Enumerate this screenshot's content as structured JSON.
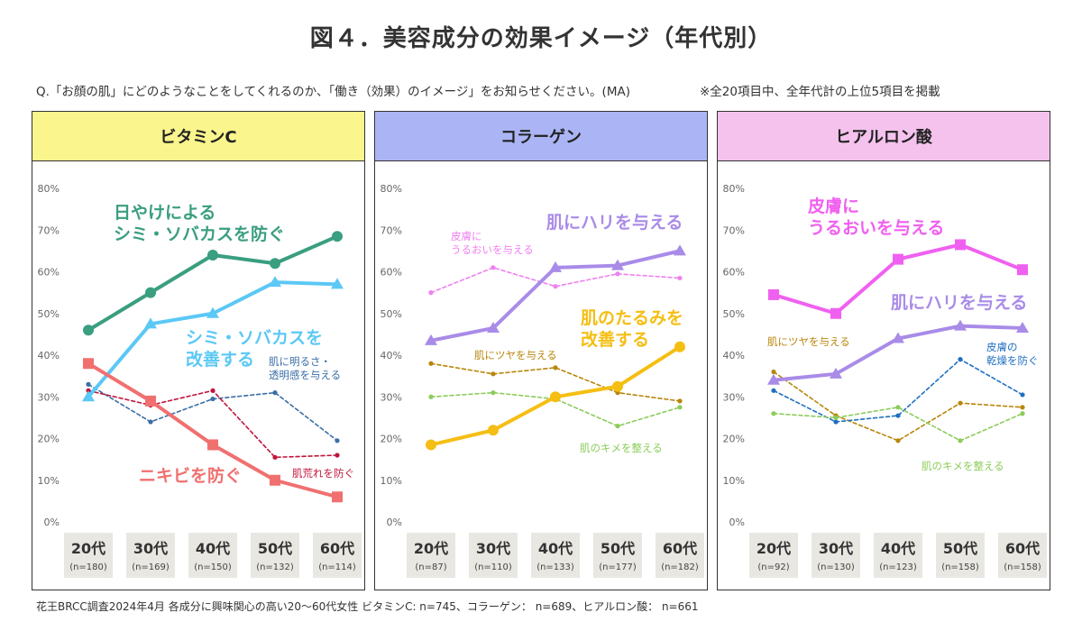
{
  "title": "図４．美容成分の効果イメージ（年代別）",
  "question": "Q.「お顔の肌」にどのようなことをしてくれるのか、「働き（効果）のイメージ」をお知らせください。(MA)",
  "note": "※全20項目中、全年代計の上位5項目を掲載",
  "footnote": "花王BRCC調査2024年4月 各成分に興味関心の高い20～60代女性  ビタミンC: n=745、コラーゲン： n=689、ヒアルロン酸： n=661",
  "chart_data": [
    {
      "type": "line",
      "title": "ビタミンC",
      "header_color": "#FAF58C",
      "y_ticks": [
        "0%",
        "10%",
        "20%",
        "30%",
        "40%",
        "50%",
        "60%",
        "70%",
        "80%"
      ],
      "ylim": [
        0,
        80
      ],
      "categories": [
        "20代",
        "30代",
        "40代",
        "50代",
        "60代"
      ],
      "n_labels": [
        "(n=180)",
        "(n=169)",
        "(n=150)",
        "(n=132)",
        "(n=114)"
      ],
      "series": [
        {
          "name": "日やけによる\nシミ・ソバカスを防ぐ",
          "values": [
            46,
            55,
            64,
            62,
            68.5
          ],
          "color": "#3A9E80",
          "style": "bold",
          "marker": "circle"
        },
        {
          "name": "シミ・ソバカスを\n改善する",
          "values": [
            30,
            47.5,
            50,
            57.5,
            57
          ],
          "color": "#5BC8F5",
          "style": "bold",
          "marker": "triangle"
        },
        {
          "name": "ニキビを防ぐ",
          "values": [
            38,
            29,
            18.5,
            10,
            6
          ],
          "color": "#F07070",
          "style": "bold",
          "marker": "square"
        },
        {
          "name": "肌に明るさ・\n透明感を与える",
          "values": [
            33,
            24,
            29.5,
            31,
            19.5
          ],
          "color": "#3A6EA5",
          "style": "dashed",
          "marker": "dot"
        },
        {
          "name": "肌荒れを防ぐ",
          "values": [
            31.5,
            28,
            31.5,
            15.5,
            16
          ],
          "color": "#C0143C",
          "style": "dashed",
          "marker": "dot"
        }
      ]
    },
    {
      "type": "line",
      "title": "コラーゲン",
      "header_color": "#ABB5F5",
      "y_ticks": [
        "0%",
        "10%",
        "20%",
        "30%",
        "40%",
        "50%",
        "60%",
        "70%",
        "80%"
      ],
      "ylim": [
        0,
        80
      ],
      "categories": [
        "20代",
        "30代",
        "40代",
        "50代",
        "60代"
      ],
      "n_labels": [
        "(n=87)",
        "(n=110)",
        "(n=133)",
        "(n=177)",
        "(n=182)"
      ],
      "series": [
        {
          "name": "肌にハリを与える",
          "values": [
            43.5,
            46.5,
            61,
            61.5,
            65
          ],
          "color": "#A98BE8",
          "style": "bold",
          "marker": "triangle"
        },
        {
          "name": "肌のたるみを\n改善する",
          "values": [
            18.5,
            22,
            30,
            32.5,
            42
          ],
          "color": "#F5BE12",
          "style": "bold",
          "marker": "circle"
        },
        {
          "name": "皮膚に\nうるおいを与える",
          "values": [
            55,
            61,
            56.5,
            59.5,
            58.5
          ],
          "color": "#F080F0",
          "style": "dashed",
          "marker": "dot"
        },
        {
          "name": "肌にツヤを与える",
          "values": [
            38,
            35.5,
            37,
            31,
            29
          ],
          "color": "#B8860B",
          "style": "dashed",
          "marker": "dot"
        },
        {
          "name": "肌のキメを整える",
          "values": [
            30,
            31,
            29.5,
            23,
            27.5
          ],
          "color": "#8CCC5A",
          "style": "dashed",
          "marker": "dot"
        }
      ]
    },
    {
      "type": "line",
      "title": "ヒアルロン酸",
      "header_color": "#F5C2EE",
      "y_ticks": [
        "0%",
        "10%",
        "20%",
        "30%",
        "40%",
        "50%",
        "60%",
        "70%",
        "80%"
      ],
      "ylim": [
        0,
        80
      ],
      "categories": [
        "20代",
        "30代",
        "40代",
        "50代",
        "60代"
      ],
      "n_labels": [
        "(n=92)",
        "(n=130)",
        "(n=123)",
        "(n=158)",
        "(n=158)"
      ],
      "series": [
        {
          "name": "皮膚に\nうるおいを与える",
          "values": [
            54.5,
            50,
            63,
            66.5,
            60.5
          ],
          "color": "#F060F0",
          "style": "bold",
          "marker": "square"
        },
        {
          "name": "肌にハリを与える",
          "values": [
            34,
            35.5,
            44,
            47,
            46.5
          ],
          "color": "#A98BE8",
          "style": "bold",
          "marker": "triangle"
        },
        {
          "name": "肌にツヤを与える",
          "values": [
            36,
            25.5,
            19.5,
            28.5,
            27.5
          ],
          "color": "#B8860B",
          "style": "dashed",
          "marker": "dot"
        },
        {
          "name": "皮膚の\n乾燥を防ぐ",
          "values": [
            31.5,
            24,
            25.5,
            39,
            30.5
          ],
          "color": "#1F6FC0",
          "style": "dashed",
          "marker": "dot"
        },
        {
          "name": "肌のキメを整える",
          "values": [
            26,
            25,
            27.5,
            19.5,
            26
          ],
          "color": "#8CCC5A",
          "style": "dashed",
          "marker": "dot"
        }
      ]
    }
  ]
}
